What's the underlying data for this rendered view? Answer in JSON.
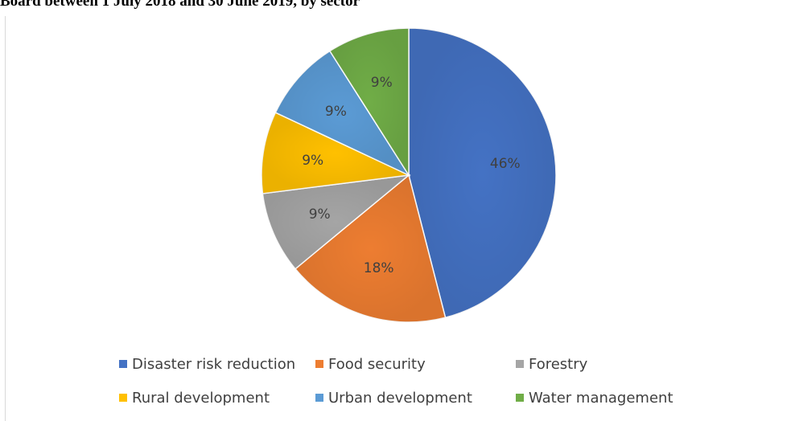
{
  "chart_data": {
    "type": "pie",
    "title": "Board between 1 July 2018 and 30 June 2019, by sector",
    "series": [
      {
        "values": [
          46,
          18,
          9,
          9,
          9,
          9
        ],
        "labels": [
          "46%",
          "18%",
          "9%",
          "9%",
          "9%",
          "9%"
        ]
      }
    ],
    "categories": [
      "Disaster risk reduction",
      "Food security",
      "Forestry",
      "Rural development",
      "Urban development",
      "Water management"
    ],
    "colors": [
      "#4472C4",
      "#ED7D31",
      "#A5A5A5",
      "#FFC000",
      "#5B9BD5",
      "#70AD47"
    ],
    "label_color": "#404040",
    "legend_placement": "bottom"
  }
}
